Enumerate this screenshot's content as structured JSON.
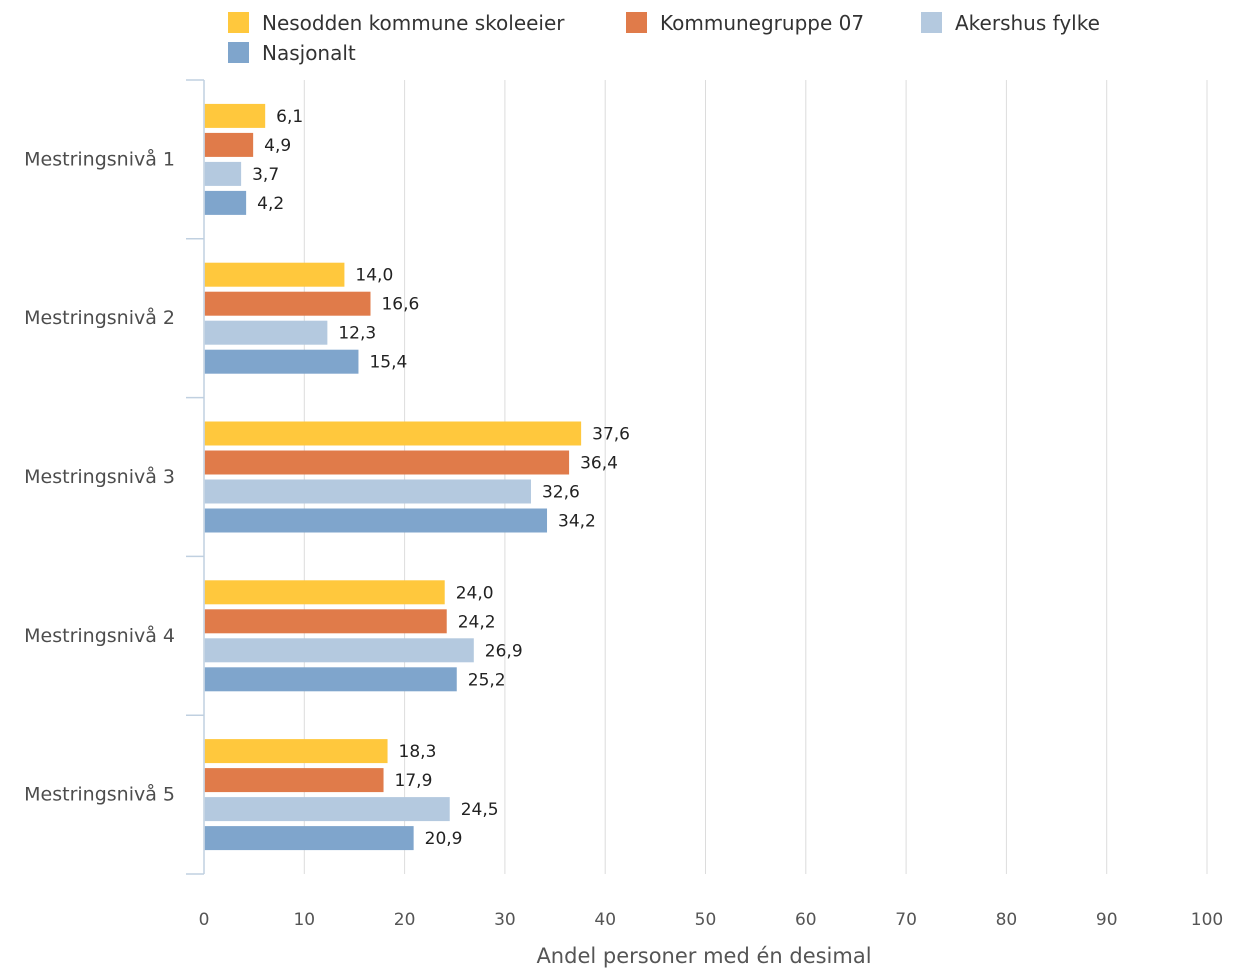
{
  "chart_data": {
    "type": "bar",
    "orientation": "horizontal",
    "categories": [
      "Mestringsnivå 1",
      "Mestringsnivå 2",
      "Mestringsnivå 3",
      "Mestringsnivå 4",
      "Mestringsnivå 5"
    ],
    "series": [
      {
        "name": "Nesodden kommune skoleeier",
        "color": "#ffc83d",
        "values": [
          6.1,
          14.0,
          37.6,
          24.0,
          18.3
        ],
        "labels": [
          "6,1",
          "14,0",
          "37,6",
          "24,0",
          "18,3"
        ]
      },
      {
        "name": "Kommunegruppe 07",
        "color": "#e07b4a",
        "values": [
          4.9,
          16.6,
          36.4,
          24.2,
          17.9
        ],
        "labels": [
          "4,9",
          "16,6",
          "36,4",
          "24,2",
          "17,9"
        ]
      },
      {
        "name": "Akershus fylke",
        "color": "#b4c9df",
        "values": [
          3.7,
          12.3,
          32.6,
          26.9,
          24.5
        ],
        "labels": [
          "3,7",
          "12,3",
          "32,6",
          "26,9",
          "24,5"
        ]
      },
      {
        "name": "Nasjonalt",
        "color": "#7fa5cc",
        "values": [
          4.2,
          15.4,
          34.2,
          25.2,
          20.9
        ],
        "labels": [
          "4,2",
          "15,4",
          "34,2",
          "25,2",
          "20,9"
        ]
      }
    ],
    "xlim": [
      0,
      100
    ],
    "xticks": [
      "0",
      "10",
      "20",
      "30",
      "40",
      "50",
      "60",
      "70",
      "80",
      "90",
      "100"
    ],
    "xlabel": "Andel personer med én desimal",
    "grid": true,
    "legend": "top"
  }
}
